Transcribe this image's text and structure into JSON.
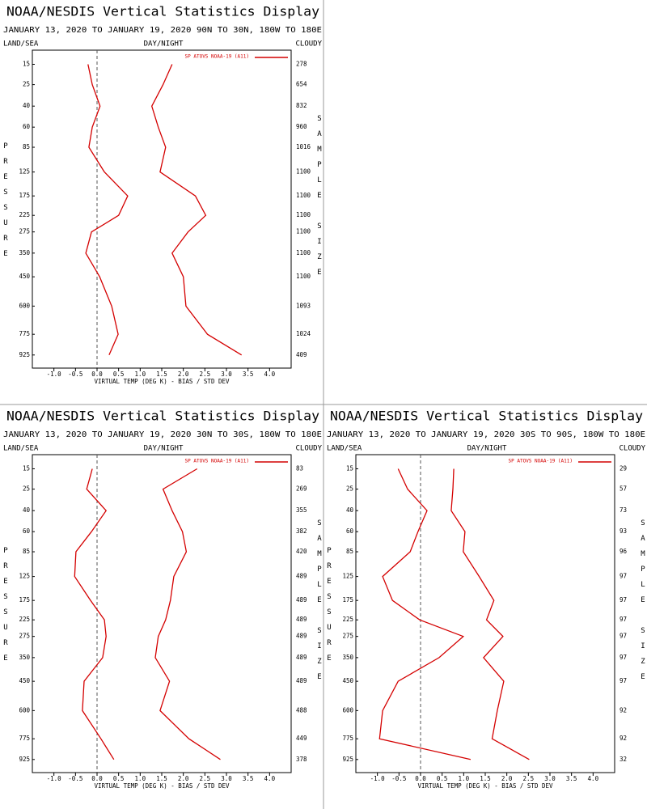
{
  "chart_data": [
    {
      "type": "line",
      "title": "NOAA/NESDIS Vertical Statistics Display",
      "subtitle": "JANUARY 13, 2020 TO JANUARY 19, 2020  90N TO 30N, 180W TO 180E",
      "header_left": "LAND/SEA",
      "header_center": "DAY/NIGHT",
      "header_right": "CLOUDY",
      "xlabel": "VIRTUAL TEMP (DEG K) - BIAS / STD DEV",
      "ylabel": "PRESSURE",
      "y2label": "SAMPLE SIZE",
      "xlim": [
        -1.5,
        4.5
      ],
      "xticks": [
        {
          "value": -1,
          "label": "-1.0"
        },
        -0.5,
        {
          "value": 0,
          "label": "0.0"
        },
        0.5,
        {
          "value": 1,
          "label": "1.0"
        },
        1.5,
        {
          "value": 2,
          "label": "2.0"
        },
        2.5,
        {
          "value": 3,
          "label": "3.0"
        },
        3.5,
        {
          "value": 4,
          "label": "4.0"
        }
      ],
      "ylim": [
        1030,
        10
      ],
      "yscale": "power",
      "yexponent": 0.286,
      "y": [
        15,
        25,
        40,
        60,
        85,
        125,
        175,
        225,
        275,
        350,
        450,
        600,
        775,
        925
      ],
      "sample_size": [
        278,
        654,
        832,
        960,
        1016,
        1100,
        1100,
        1100,
        1100,
        1100,
        1100,
        1093,
        1024,
        409
      ],
      "series": [
        {
          "name": "SP ATOVS NOAA-19 (A11)",
          "color": "#d40000",
          "bias": [
            -0.21,
            -0.11,
            0.07,
            -0.11,
            -0.19,
            0.17,
            0.71,
            0.5,
            -0.13,
            -0.26,
            0.06,
            0.34,
            0.49,
            0.28
          ],
          "std_dev": [
            1.74,
            1.53,
            1.27,
            1.42,
            1.59,
            1.46,
            2.28,
            2.52,
            2.11,
            1.74,
            2.0,
            2.06,
            2.56,
            3.35
          ]
        }
      ]
    },
    {
      "type": "line",
      "title": "NOAA/NESDIS Vertical Statistics Display",
      "subtitle": "JANUARY 13, 2020 TO JANUARY 19, 2020  30N TO 30S, 180W TO 180E",
      "header_left": "LAND/SEA",
      "header_center": "DAY/NIGHT",
      "header_right": "CLOUDY",
      "xlabel": "VIRTUAL TEMP (DEG K) - BIAS / STD DEV",
      "ylabel": "PRESSURE",
      "y2label": "SAMPLE SIZE",
      "xlim": [
        -1.5,
        4.5
      ],
      "xticks": [
        {
          "value": -1,
          "label": "-1.0"
        },
        -0.5,
        {
          "value": 0,
          "label": "0.0"
        },
        0.5,
        {
          "value": 1,
          "label": "1.0"
        },
        1.5,
        {
          "value": 2,
          "label": "2.0"
        },
        2.5,
        {
          "value": 3,
          "label": "3.0"
        },
        3.5,
        {
          "value": 4,
          "label": "4.0"
        }
      ],
      "ylim": [
        1030,
        10
      ],
      "yscale": "power",
      "yexponent": 0.286,
      "y": [
        15,
        25,
        40,
        60,
        85,
        125,
        175,
        225,
        275,
        350,
        450,
        600,
        775,
        925
      ],
      "sample_size": [
        83,
        269,
        355,
        382,
        420,
        489,
        489,
        489,
        489,
        489,
        489,
        488,
        449,
        378
      ],
      "series": [
        {
          "name": "SP ATOVS NOAA-19 (A11)",
          "color": "#d40000",
          "bias": [
            -0.11,
            -0.24,
            0.21,
            -0.13,
            -0.49,
            -0.52,
            -0.15,
            0.17,
            0.21,
            0.13,
            -0.3,
            -0.34,
            0.09,
            0.39
          ],
          "std_dev": [
            2.32,
            1.53,
            1.74,
            1.98,
            2.07,
            1.78,
            1.7,
            1.59,
            1.42,
            1.35,
            1.68,
            1.46,
            2.13,
            2.86
          ]
        }
      ]
    },
    {
      "type": "line",
      "title": "NOAA/NESDIS Vertical Statistics Display",
      "subtitle": "JANUARY 13, 2020 TO JANUARY 19, 2020  30S TO 90S, 180W TO 180E",
      "header_left": "LAND/SEA",
      "header_center": "DAY/NIGHT",
      "header_right": "CLOUDY",
      "xlabel": "VIRTUAL TEMP (DEG K) - BIAS / STD DEV",
      "ylabel": "PRESSURE",
      "y2label": "SAMPLE SIZE",
      "xlim": [
        -1.5,
        4.5
      ],
      "xticks": [
        {
          "value": -1,
          "label": "-1.0"
        },
        -0.5,
        {
          "value": 0,
          "label": "0.0"
        },
        0.5,
        {
          "value": 1,
          "label": "1.0"
        },
        1.5,
        {
          "value": 2,
          "label": "2.0"
        },
        2.5,
        {
          "value": 3,
          "label": "3.0"
        },
        3.5,
        {
          "value": 4,
          "label": "4.0"
        }
      ],
      "ylim": [
        1030,
        10
      ],
      "yscale": "power",
      "yexponent": 0.286,
      "y": [
        15,
        25,
        40,
        60,
        85,
        125,
        175,
        225,
        275,
        350,
        450,
        600,
        775,
        925
      ],
      "sample_size": [
        29,
        57,
        73,
        93,
        96,
        97,
        97,
        97,
        97,
        97,
        97,
        92,
        92,
        32
      ],
      "series": [
        {
          "name": "SP ATOVS NOAA-19 (A11)",
          "color": "#d40000",
          "bias": [
            -0.52,
            -0.3,
            0.15,
            -0.06,
            -0.24,
            -0.88,
            -0.65,
            -0.02,
            0.99,
            0.43,
            -0.52,
            -0.88,
            -0.95,
            1.16
          ],
          "std_dev": [
            0.77,
            0.75,
            0.71,
            1.03,
            0.99,
            1.36,
            1.7,
            1.53,
            1.91,
            1.46,
            1.93,
            1.78,
            1.66,
            2.52
          ]
        }
      ]
    }
  ]
}
